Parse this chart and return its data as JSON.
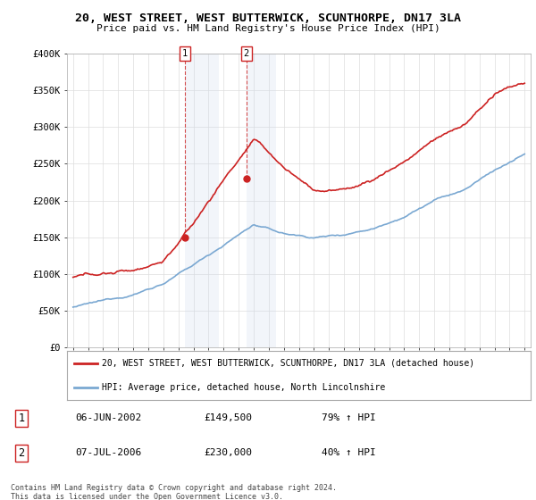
{
  "title": "20, WEST STREET, WEST BUTTERWICK, SCUNTHORPE, DN17 3LA",
  "subtitle": "Price paid vs. HM Land Registry's House Price Index (HPI)",
  "ylim": [
    0,
    400000
  ],
  "yticks": [
    0,
    50000,
    100000,
    150000,
    200000,
    250000,
    300000,
    350000,
    400000
  ],
  "ytick_labels": [
    "£0",
    "£50K",
    "£100K",
    "£150K",
    "£200K",
    "£250K",
    "£300K",
    "£350K",
    "£400K"
  ],
  "hpi_color": "#7aa8d2",
  "price_color": "#cc2222",
  "sale1_date": 2002.44,
  "sale1_price": 149500,
  "sale2_date": 2006.52,
  "sale2_price": 230000,
  "legend_line1": "20, WEST STREET, WEST BUTTERWICK, SCUNTHORPE, DN17 3LA (detached house)",
  "legend_line2": "HPI: Average price, detached house, North Lincolnshire",
  "table_row1_num": "1",
  "table_row1_date": "06-JUN-2002",
  "table_row1_price": "£149,500",
  "table_row1_hpi": "79% ↑ HPI",
  "table_row2_num": "2",
  "table_row2_date": "07-JUL-2006",
  "table_row2_price": "£230,000",
  "table_row2_hpi": "40% ↑ HPI",
  "footer": "Contains HM Land Registry data © Crown copyright and database right 2024.\nThis data is licensed under the Open Government Licence v3.0.",
  "background_color": "#ffffff",
  "grid_color": "#dddddd",
  "shade_color": "#ccd9ee",
  "shade1_xmin": 2002.44,
  "shade1_xmax": 2004.7,
  "shade2_xmin": 2006.52,
  "shade2_xmax": 2008.5,
  "xmin": 1994.6,
  "xmax": 2025.4
}
